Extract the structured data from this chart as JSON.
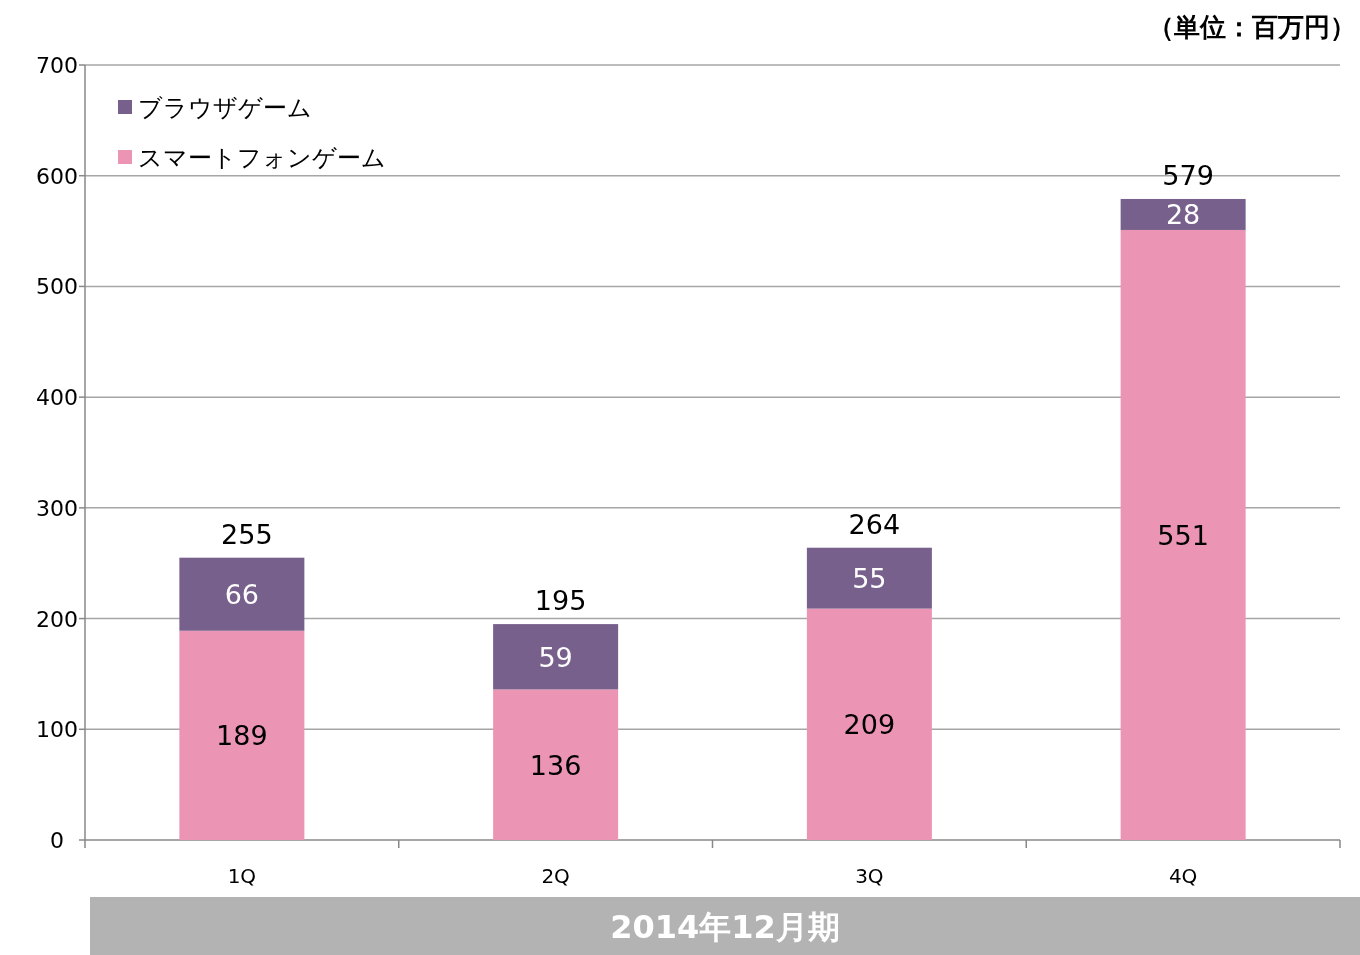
{
  "chart_data": {
    "type": "bar",
    "stacked": true,
    "categories": [
      "1Q",
      "2Q",
      "3Q",
      "4Q"
    ],
    "series": [
      {
        "name": "スマートフォンゲーム",
        "color": "#eb94b4",
        "values": [
          189,
          136,
          209,
          551
        ]
      },
      {
        "name": "ブラウザゲーム",
        "color": "#77608c",
        "values": [
          66,
          59,
          55,
          28
        ]
      }
    ],
    "totals": [
      "255",
      "195",
      "264",
      "579"
    ],
    "data_labels": true,
    "ylim": [
      0,
      700
    ],
    "yticks": [
      0,
      100,
      200,
      300,
      400,
      500,
      600,
      700
    ],
    "grid": "y",
    "legend": "top left",
    "xlabel": "2014年12月期",
    "annotations": [
      "（単位：百万円）"
    ]
  }
}
